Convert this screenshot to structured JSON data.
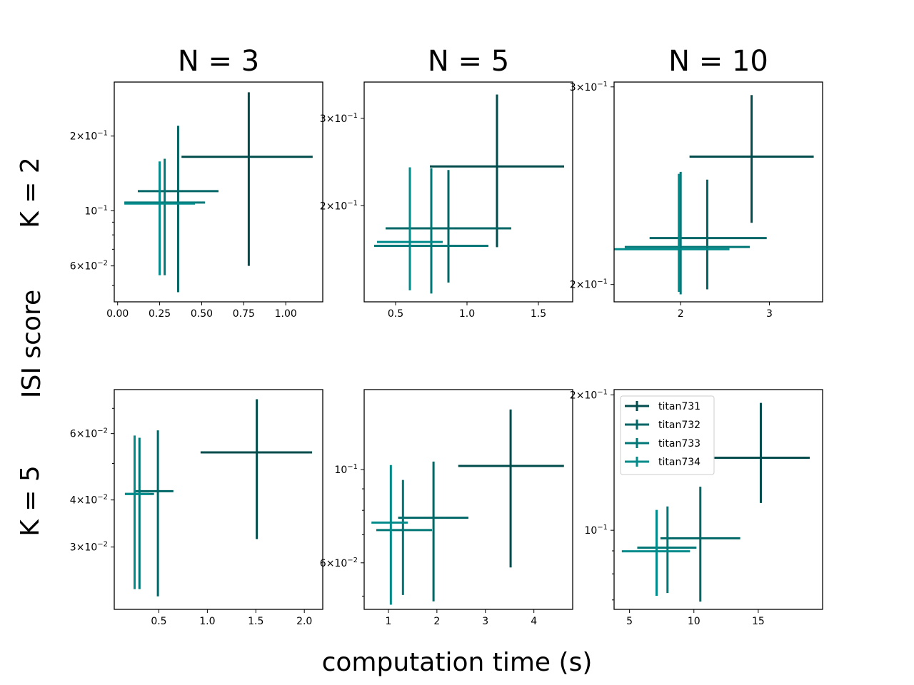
{
  "figure": {
    "xlabel": "computation time (s)",
    "ylabel": "ISI score",
    "column_titles": [
      "N = 3",
      "N = 5",
      "N = 10"
    ],
    "row_labels": [
      "K = 2",
      "K = 5"
    ]
  },
  "colors": {
    "titan731": "#004c4c",
    "titan732": "#006666",
    "titan733": "#007777",
    "titan734": "#008b8b"
  },
  "legend": {
    "location": "upper-left of bottom-right panel",
    "entries": [
      "titan731",
      "titan732",
      "titan733",
      "titan734"
    ]
  },
  "chart_data": [
    {
      "type": "scatter",
      "panel": "K = 2, N = 3",
      "row": 0,
      "col": 0,
      "title": "N = 3",
      "xscale": "linear",
      "yscale": "log",
      "xlim": [
        -0.02,
        1.22
      ],
      "ylim": [
        0.043,
        0.33
      ],
      "xticks": [
        {
          "v": 0.0,
          "t": "0.00"
        },
        {
          "v": 0.25,
          "t": "0.25"
        },
        {
          "v": 0.5,
          "t": "0.50"
        },
        {
          "v": 0.75,
          "t": "0.75"
        },
        {
          "v": 1.0,
          "t": "1.00"
        }
      ],
      "yticks": [
        {
          "v": 0.06,
          "m": "6",
          "e": "−2"
        },
        {
          "v": 0.1,
          "m": "",
          "e": "−1"
        },
        {
          "v": 0.2,
          "m": "2",
          "e": "−1"
        }
      ],
      "yminor": [
        0.05,
        0.07,
        0.08,
        0.09
      ],
      "series": [
        {
          "name": "titan731",
          "x": 0.78,
          "xerr": [
            0.38,
            1.16
          ],
          "y": 0.165,
          "yerr": [
            0.06,
            0.3
          ]
        },
        {
          "name": "titan732",
          "x": 0.36,
          "xerr": [
            0.12,
            0.6
          ],
          "y": 0.12,
          "yerr": [
            0.047,
            0.22
          ]
        },
        {
          "name": "titan733",
          "x": 0.28,
          "xerr": [
            0.04,
            0.52
          ],
          "y": 0.108,
          "yerr": [
            0.055,
            0.162
          ]
        },
        {
          "name": "titan734",
          "x": 0.25,
          "xerr": [
            0.04,
            0.46
          ],
          "y": 0.107,
          "yerr": [
            0.055,
            0.158
          ]
        }
      ]
    },
    {
      "type": "scatter",
      "panel": "K = 2, N = 5",
      "row": 0,
      "col": 1,
      "title": "N = 5",
      "xscale": "linear",
      "yscale": "log",
      "xlim": [
        0.28,
        1.74
      ],
      "ylim": [
        0.128,
        0.355
      ],
      "xticks": [
        {
          "v": 0.5,
          "t": "0.5"
        },
        {
          "v": 1.0,
          "t": "1.0"
        },
        {
          "v": 1.5,
          "t": "1.5"
        }
      ],
      "yticks": [
        {
          "v": 0.2,
          "m": "2",
          "e": "−1"
        },
        {
          "v": 0.3,
          "m": "3",
          "e": "−1"
        }
      ],
      "yminor": [],
      "series": [
        {
          "name": "titan731",
          "x": 1.21,
          "xerr": [
            0.74,
            1.68
          ],
          "y": 0.24,
          "yerr": [
            0.165,
            0.335
          ]
        },
        {
          "name": "titan732",
          "x": 0.87,
          "xerr": [
            0.43,
            1.31
          ],
          "y": 0.18,
          "yerr": [
            0.14,
            0.236
          ]
        },
        {
          "name": "titan733",
          "x": 0.75,
          "xerr": [
            0.35,
            1.15
          ],
          "y": 0.166,
          "yerr": [
            0.133,
            0.238
          ]
        },
        {
          "name": "titan734",
          "x": 0.6,
          "xerr": [
            0.37,
            0.83
          ],
          "y": 0.169,
          "yerr": [
            0.135,
            0.239
          ]
        }
      ]
    },
    {
      "type": "scatter",
      "panel": "K = 2, N = 10",
      "row": 0,
      "col": 2,
      "title": "N = 10",
      "xscale": "linear",
      "yscale": "log",
      "xlim": [
        1.25,
        3.6
      ],
      "ylim": [
        0.193,
        0.303
      ],
      "xticks": [
        {
          "v": 2,
          "t": "2"
        },
        {
          "v": 3,
          "t": "3"
        }
      ],
      "yticks": [
        {
          "v": 0.2,
          "m": "2",
          "e": "−1"
        },
        {
          "v": 0.3,
          "m": "3",
          "e": "−1"
        }
      ],
      "yminor": [],
      "series": [
        {
          "name": "titan731",
          "x": 2.8,
          "xerr": [
            2.1,
            3.5
          ],
          "y": 0.26,
          "yerr": [
            0.227,
            0.295
          ]
        },
        {
          "name": "titan732",
          "x": 2.3,
          "xerr": [
            1.65,
            2.97
          ],
          "y": 0.22,
          "yerr": [
            0.198,
            0.248
          ]
        },
        {
          "name": "titan733",
          "x": 2.0,
          "xerr": [
            1.37,
            2.78
          ],
          "y": 0.216,
          "yerr": [
            0.196,
            0.252
          ]
        },
        {
          "name": "titan734",
          "x": 1.98,
          "xerr": [
            1.25,
            2.55
          ],
          "y": 0.215,
          "yerr": [
            0.197,
            0.251
          ]
        }
      ]
    },
    {
      "type": "scatter",
      "panel": "K = 5, N = 3",
      "row": 1,
      "col": 0,
      "title": "",
      "xscale": "linear",
      "yscale": "log",
      "xlim": [
        0.04,
        2.19
      ],
      "ylim": [
        0.0205,
        0.0785
      ],
      "xticks": [
        {
          "v": 0.5,
          "t": "0.5"
        },
        {
          "v": 1.0,
          "t": "1.0"
        },
        {
          "v": 1.5,
          "t": "1.5"
        },
        {
          "v": 2.0,
          "t": "2.0"
        }
      ],
      "yticks": [
        {
          "v": 0.03,
          "m": "3",
          "e": "−2"
        },
        {
          "v": 0.04,
          "m": "4",
          "e": "−2"
        },
        {
          "v": 0.06,
          "m": "6",
          "e": "−2"
        }
      ],
      "yminor": [
        0.05,
        0.07
      ],
      "series": [
        {
          "name": "titan731",
          "x": 1.51,
          "xerr": [
            0.93,
            2.08
          ],
          "y": 0.0535,
          "yerr": [
            0.0315,
            0.074
          ]
        },
        {
          "name": "titan732",
          "x": 0.49,
          "xerr": [
            0.25,
            0.65
          ],
          "y": 0.0422,
          "yerr": [
            0.0222,
            0.0612
          ]
        },
        {
          "name": "titan733",
          "x": 0.3,
          "xerr": [
            0.15,
            0.45
          ],
          "y": 0.0415,
          "yerr": [
            0.0232,
            0.0585
          ]
        },
        {
          "name": "titan734",
          "x": 0.25,
          "xerr": [
            0.15,
            0.4
          ],
          "y": 0.0415,
          "yerr": [
            0.0232,
            0.0593
          ]
        }
      ]
    },
    {
      "type": "scatter",
      "panel": "K = 5, N = 5",
      "row": 1,
      "col": 1,
      "title": "",
      "xscale": "linear",
      "yscale": "log",
      "xlim": [
        0.5,
        4.8
      ],
      "ylim": [
        0.0465,
        0.155
      ],
      "xticks": [
        {
          "v": 1,
          "t": "1"
        },
        {
          "v": 2,
          "t": "2"
        },
        {
          "v": 3,
          "t": "3"
        },
        {
          "v": 4,
          "t": "4"
        }
      ],
      "yticks": [
        {
          "v": 0.06,
          "m": "6",
          "e": "−2"
        },
        {
          "v": 0.1,
          "m": "",
          "e": "−1"
        }
      ],
      "yminor": [
        0.05,
        0.07,
        0.08,
        0.09
      ],
      "series": [
        {
          "name": "titan731",
          "x": 3.52,
          "xerr": [
            2.44,
            4.62
          ],
          "y": 0.102,
          "yerr": [
            0.0585,
            0.139
          ]
        },
        {
          "name": "titan732",
          "x": 1.93,
          "xerr": [
            1.2,
            2.65
          ],
          "y": 0.0768,
          "yerr": [
            0.0486,
            0.1045
          ]
        },
        {
          "name": "titan733",
          "x": 1.3,
          "xerr": [
            0.75,
            1.9
          ],
          "y": 0.0718,
          "yerr": [
            0.0503,
            0.0945
          ]
        },
        {
          "name": "titan734",
          "x": 1.05,
          "xerr": [
            0.65,
            1.4
          ],
          "y": 0.0748,
          "yerr": [
            0.0477,
            0.1025
          ]
        }
      ]
    },
    {
      "type": "scatter",
      "panel": "K = 5, N = 10",
      "row": 1,
      "col": 2,
      "title": "",
      "xscale": "linear",
      "yscale": "log",
      "xlim": [
        3.8,
        20.0
      ],
      "ylim": [
        0.0667,
        0.2055
      ],
      "xticks": [
        {
          "v": 5,
          "t": "5"
        },
        {
          "v": 10,
          "t": "10"
        },
        {
          "v": 15,
          "t": "15"
        }
      ],
      "yticks": [
        {
          "v": 0.1,
          "m": "",
          "e": "−1"
        },
        {
          "v": 0.2,
          "m": "2",
          "e": "−1"
        }
      ],
      "yminor": [
        0.07,
        0.08,
        0.09
      ],
      "series": [
        {
          "name": "titan731",
          "x": 15.2,
          "xerr": [
            11.5,
            19.0
          ],
          "y": 0.145,
          "yerr": [
            0.115,
            0.192
          ]
        },
        {
          "name": "titan732",
          "x": 10.5,
          "xerr": [
            7.4,
            13.6
          ],
          "y": 0.096,
          "yerr": [
            0.0694,
            0.125
          ]
        },
        {
          "name": "titan733",
          "x": 7.95,
          "xerr": [
            5.6,
            10.2
          ],
          "y": 0.0915,
          "yerr": [
            0.0725,
            0.113
          ]
        },
        {
          "name": "titan734",
          "x": 7.1,
          "xerr": [
            4.4,
            9.7
          ],
          "y": 0.0898,
          "yerr": [
            0.0715,
            0.111
          ]
        }
      ]
    }
  ]
}
